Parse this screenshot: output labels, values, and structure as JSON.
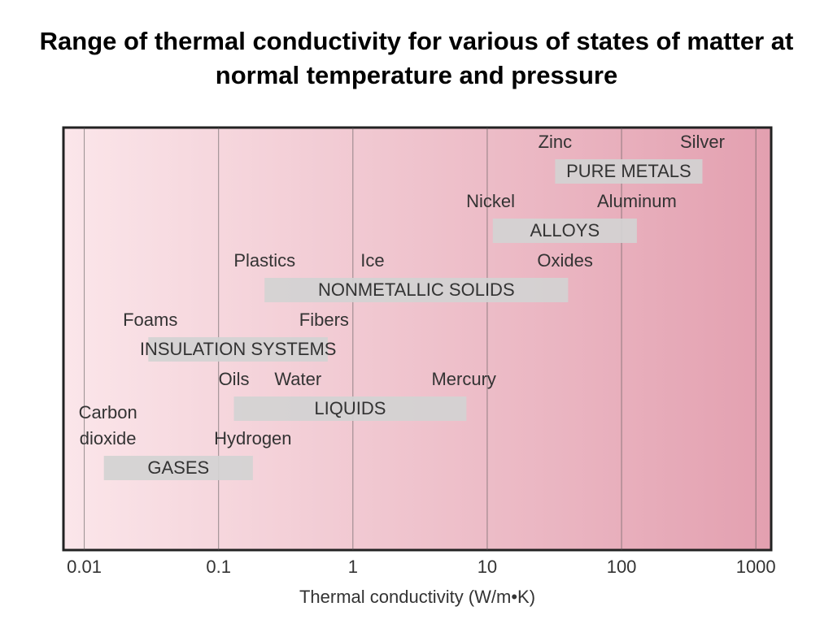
{
  "chart_data": {
    "type": "range",
    "title": "Range of thermal conductivity for various of states of matter at normal temperature and pressure",
    "xlabel": "Thermal conductivity (W/m•K)",
    "xscale": "log",
    "xlim": [
      0.007,
      1300
    ],
    "xticks": [
      0.01,
      0.1,
      1,
      10,
      100,
      1000
    ],
    "grid": true,
    "bands": [
      {
        "name": "PURE METALS",
        "low": 32,
        "high": 400,
        "labels": [
          {
            "lines": [
              "Zinc"
            ],
            "x": 32
          },
          {
            "lines": [
              "Silver"
            ],
            "x": 400
          }
        ]
      },
      {
        "name": "ALLOYS",
        "low": 11,
        "high": 130,
        "labels": [
          {
            "lines": [
              "Nickel"
            ],
            "x": 10.6
          },
          {
            "lines": [
              "Aluminum"
            ],
            "x": 130
          }
        ]
      },
      {
        "name": "NONMETALLIC SOLIDS",
        "low": 0.22,
        "high": 40,
        "labels": [
          {
            "lines": [
              "Plastics"
            ],
            "x": 0.22
          },
          {
            "lines": [
              "Ice"
            ],
            "x": 1.4
          },
          {
            "lines": [
              "Oxides"
            ],
            "x": 38
          }
        ]
      },
      {
        "name": "INSULATION SYSTEMS",
        "low": 0.03,
        "high": 0.65,
        "labels": [
          {
            "lines": [
              "Foams"
            ],
            "x": 0.031
          },
          {
            "lines": [
              "Fibers"
            ],
            "x": 0.61
          }
        ]
      },
      {
        "name": "LIQUIDS",
        "low": 0.13,
        "high": 7,
        "labels": [
          {
            "lines": [
              "Oils"
            ],
            "x": 0.13
          },
          {
            "lines": [
              "Water"
            ],
            "x": 0.39
          },
          {
            "lines": [
              "Mercury"
            ],
            "x": 6.7
          }
        ]
      },
      {
        "name": "GASES",
        "low": 0.014,
        "high": 0.18,
        "labels": [
          {
            "lines": [
              "Carbon",
              "dioxide"
            ],
            "x": 0.015
          },
          {
            "lines": [
              "Hydrogen"
            ],
            "x": 0.18
          }
        ]
      }
    ]
  }
}
